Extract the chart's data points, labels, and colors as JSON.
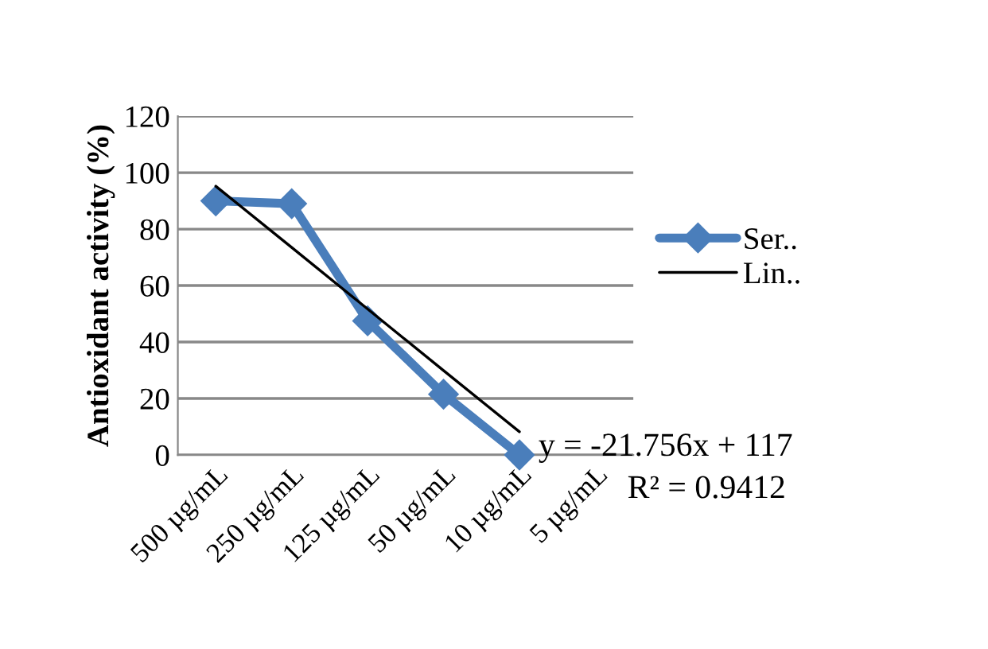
{
  "chart_data": {
    "type": "line",
    "ylabel": "Antioxidant activity (%)",
    "categories": [
      "500 µg/mL",
      "250 µg/mL",
      "125 µg/mL",
      "50 µg/mL",
      "10 µg/mL",
      "5 µg/mL"
    ],
    "series": [
      {
        "name": "Ser..",
        "color": "#4a7ebb",
        "values": [
          90,
          89,
          47.5,
          21.5,
          0,
          null
        ],
        "marker": "diamond"
      },
      {
        "name": "Lin..",
        "type": "line",
        "color": "#000000",
        "values": [
          95.2,
          73.5,
          51.7,
          29.9,
          8.2,
          null
        ],
        "marker": "none"
      }
    ],
    "ylim": [
      0,
      120
    ],
    "yticks": [
      0,
      20,
      40,
      60,
      80,
      100,
      120
    ],
    "grid": "y",
    "legend": "right",
    "annotations": [
      "y = -21.756x + 117",
      "R² = 0.9412"
    ]
  }
}
